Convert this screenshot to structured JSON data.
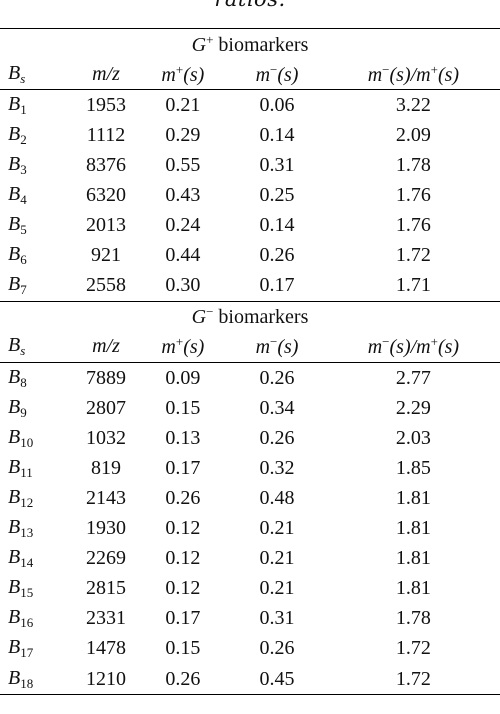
{
  "caption_tail": "ratios.",
  "columns": {
    "bs": "B",
    "bs_sub": "s",
    "mz": "m/z",
    "mplus": "m",
    "mplus_sup": "+",
    "mplus_arg": "(s)",
    "mminus": "m",
    "mminus_sup": "−",
    "mminus_arg": "(s)",
    "ratio_num": "m",
    "ratio_num_sup": "−",
    "ratio_mid": "(s)/m",
    "ratio_den_sup": "+",
    "ratio_end": "(s)"
  },
  "sections": [
    {
      "symbol": "G",
      "sup": "+",
      "label": " biomarkers",
      "rows": [
        {
          "b": "B",
          "sub": "1",
          "mz": "1953",
          "mplus": "0.21",
          "mminus": "0.06",
          "ratio": "3.22"
        },
        {
          "b": "B",
          "sub": "2",
          "mz": "1112",
          "mplus": "0.29",
          "mminus": "0.14",
          "ratio": "2.09"
        },
        {
          "b": "B",
          "sub": "3",
          "mz": "8376",
          "mplus": "0.55",
          "mminus": "0.31",
          "ratio": "1.78"
        },
        {
          "b": "B",
          "sub": "4",
          "mz": "6320",
          "mplus": "0.43",
          "mminus": "0.25",
          "ratio": "1.76"
        },
        {
          "b": "B",
          "sub": "5",
          "mz": "2013",
          "mplus": "0.24",
          "mminus": "0.14",
          "ratio": "1.76"
        },
        {
          "b": "B",
          "sub": "6",
          "mz": "921",
          "mplus": "0.44",
          "mminus": "0.26",
          "ratio": "1.72"
        },
        {
          "b": "B",
          "sub": "7",
          "mz": "2558",
          "mplus": "0.30",
          "mminus": "0.17",
          "ratio": "1.71"
        }
      ]
    },
    {
      "symbol": "G",
      "sup": "−",
      "label": " biomarkers",
      "rows": [
        {
          "b": "B",
          "sub": "8",
          "mz": "7889",
          "mplus": "0.09",
          "mminus": "0.26",
          "ratio": "2.77"
        },
        {
          "b": "B",
          "sub": "9",
          "mz": "2807",
          "mplus": "0.15",
          "mminus": "0.34",
          "ratio": "2.29"
        },
        {
          "b": "B",
          "sub": "10",
          "mz": "1032",
          "mplus": "0.13",
          "mminus": "0.26",
          "ratio": "2.03"
        },
        {
          "b": "B",
          "sub": "11",
          "mz": "819",
          "mplus": "0.17",
          "mminus": "0.32",
          "ratio": "1.85"
        },
        {
          "b": "B",
          "sub": "12",
          "mz": "2143",
          "mplus": "0.26",
          "mminus": "0.48",
          "ratio": "1.81"
        },
        {
          "b": "B",
          "sub": "13",
          "mz": "1930",
          "mplus": "0.12",
          "mminus": "0.21",
          "ratio": "1.81"
        },
        {
          "b": "B",
          "sub": "14",
          "mz": "2269",
          "mplus": "0.12",
          "mminus": "0.21",
          "ratio": "1.81"
        },
        {
          "b": "B",
          "sub": "15",
          "mz": "2815",
          "mplus": "0.12",
          "mminus": "0.21",
          "ratio": "1.81"
        },
        {
          "b": "B",
          "sub": "16",
          "mz": "2331",
          "mplus": "0.17",
          "mminus": "0.31",
          "ratio": "1.78"
        },
        {
          "b": "B",
          "sub": "17",
          "mz": "1478",
          "mplus": "0.15",
          "mminus": "0.26",
          "ratio": "1.72"
        },
        {
          "b": "B",
          "sub": "18",
          "mz": "1210",
          "mplus": "0.26",
          "mminus": "0.45",
          "ratio": "1.72"
        }
      ]
    }
  ]
}
